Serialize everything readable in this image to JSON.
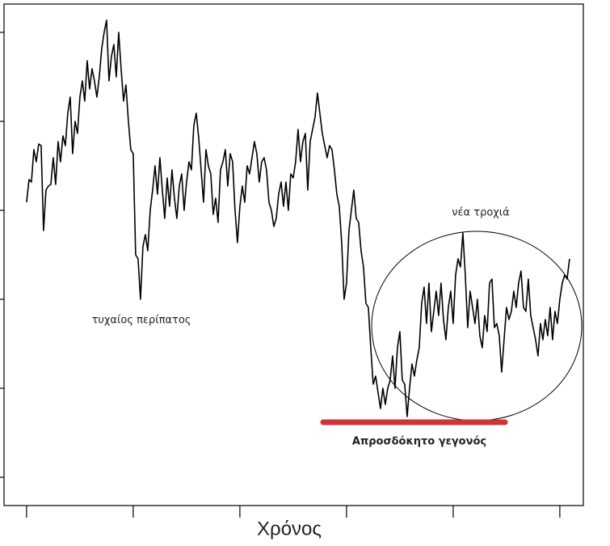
{
  "chart_data": {
    "type": "line",
    "x_label": "Χρόνος",
    "annotations": [
      "τυχαίος περίπατος",
      "νέα τροχιά",
      "Απροσδόκητο γεγονός"
    ],
    "color": "#000000",
    "xlim": [
      -9.3,
      229.7
    ],
    "xticks": [
      0,
      44,
      88,
      132,
      176,
      220
    ],
    "ylim": [
      -25,
      595
    ],
    "yticks": [
      10,
      120,
      230,
      340,
      450,
      560
    ],
    "x": [
      0,
      1,
      2,
      3,
      4,
      5,
      6,
      7,
      8,
      9,
      10,
      11,
      12,
      13,
      14,
      15,
      16,
      17,
      18,
      19,
      20,
      21,
      22,
      23,
      24,
      25,
      26,
      27,
      28,
      29,
      30,
      31,
      32,
      33,
      34,
      35,
      36,
      37,
      38,
      39,
      40,
      41,
      42,
      43,
      44,
      45,
      46,
      47,
      48,
      49,
      50,
      51,
      52,
      53,
      54,
      55,
      56,
      57,
      58,
      59,
      60,
      61,
      62,
      63,
      64,
      65,
      66,
      67,
      68,
      69,
      70,
      71,
      72,
      73,
      74,
      75,
      76,
      77,
      78,
      79,
      80,
      81,
      82,
      83,
      84,
      85,
      86,
      87,
      88,
      89,
      90,
      91,
      92,
      93,
      94,
      95,
      96,
      97,
      98,
      99,
      100,
      101,
      102,
      103,
      104,
      105,
      106,
      107,
      108,
      109,
      110,
      111,
      112,
      113,
      114,
      115,
      116,
      117,
      118,
      119,
      120,
      121,
      122,
      123,
      124,
      125,
      126,
      127,
      128,
      129,
      130,
      131,
      132,
      133,
      134,
      135,
      136,
      137,
      138,
      139,
      140,
      141,
      142,
      143,
      144,
      145,
      146,
      147,
      148,
      149,
      150,
      151,
      152,
      153,
      154,
      155,
      156,
      157,
      158,
      159,
      160,
      161,
      162,
      163,
      164,
      165,
      166,
      167,
      168,
      169,
      170,
      171,
      172,
      173,
      174,
      175,
      176,
      177,
      178,
      179,
      180,
      181,
      182,
      183,
      184,
      185,
      186,
      187,
      188,
      189,
      190,
      191,
      192,
      193,
      194,
      195,
      196,
      197,
      198,
      199,
      200,
      201,
      202,
      203,
      204,
      205,
      206,
      207,
      208,
      209,
      210,
      211,
      212,
      213,
      214,
      215,
      216,
      217,
      218,
      219,
      220,
      221,
      222,
      223,
      224
    ],
    "values": [
      350,
      378,
      375,
      415,
      400,
      422,
      420,
      315,
      365,
      370,
      372,
      405,
      372,
      425,
      400,
      432,
      420,
      460,
      480,
      410,
      450,
      435,
      480,
      500,
      475,
      525,
      490,
      515,
      500,
      480,
      505,
      540,
      560,
      575,
      500,
      530,
      545,
      505,
      560,
      515,
      475,
      495,
      450,
      415,
      410,
      285,
      280,
      230,
      295,
      310,
      290,
      340,
      365,
      395,
      360,
      405,
      365,
      330,
      380,
      345,
      390,
      355,
      330,
      370,
      385,
      340,
      375,
      400,
      390,
      445,
      460,
      430,
      390,
      350,
      415,
      395,
      385,
      335,
      355,
      325,
      390,
      400,
      415,
      370,
      410,
      400,
      340,
      300,
      345,
      370,
      350,
      395,
      385,
      405,
      425,
      410,
      375,
      400,
      405,
      390,
      350,
      340,
      320,
      330,
      360,
      375,
      345,
      375,
      340,
      385,
      380,
      400,
      440,
      400,
      425,
      435,
      365,
      425,
      440,
      455,
      485,
      460,
      435,
      420,
      405,
      420,
      415,
      390,
      360,
      345,
      300,
      230,
      250,
      315,
      340,
      365,
      330,
      325,
      290,
      270,
      225,
      220,
      170,
      125,
      135,
      115,
      95,
      120,
      100,
      120,
      130,
      160,
      120,
      170,
      190,
      130,
      125,
      85,
      120,
      150,
      135,
      155,
      170,
      225,
      245,
      200,
      250,
      190,
      215,
      240,
      210,
      250,
      205,
      180,
      220,
      240,
      200,
      260,
      280,
      270,
      312,
      260,
      195,
      240,
      220,
      200,
      230,
      185,
      170,
      210,
      190,
      250,
      255,
      195,
      200,
      185,
      140,
      180,
      220,
      205,
      215,
      240,
      220,
      250,
      265,
      220,
      215,
      255,
      210,
      195,
      180,
      160,
      200,
      180,
      205,
      185,
      220,
      180,
      215,
      200,
      230,
      250,
      260,
      255,
      280
    ]
  }
}
